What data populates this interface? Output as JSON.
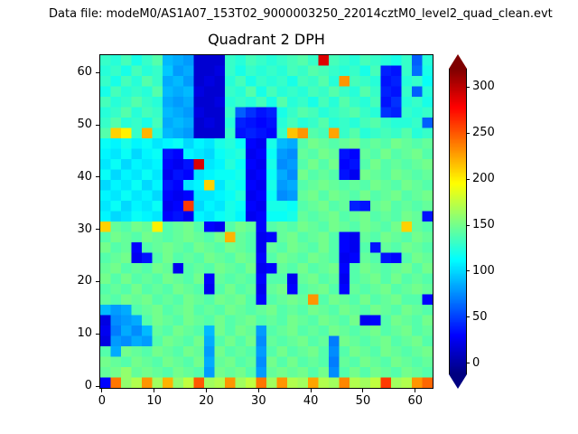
{
  "figure": {
    "data_file_label": "Data file: modeM0/AS1A07_153T02_9000003250_22014cztM0_level2_quad_clean.evt"
  },
  "chart_data": {
    "type": "heatmap",
    "title": "Quadrant 2 DPH",
    "colormap": "jet",
    "x_range": [
      -0.5,
      63.5
    ],
    "y_range": [
      -0.5,
      63.5
    ],
    "x_ticks": [
      0,
      10,
      20,
      30,
      40,
      50,
      60
    ],
    "y_ticks": [
      0,
      10,
      20,
      30,
      40,
      50,
      60
    ],
    "colorbar": {
      "ticks": [
        0,
        50,
        100,
        150,
        200,
        250,
        300
      ],
      "vmin": -12,
      "vmax": 320,
      "extend": "both"
    },
    "note": "32x32 downsampled estimate of the 64x64 detector plane histogram; values in counts",
    "values_rows_top_to_bottom": [
      "130 125 135 120 130 140 90 85 80 15 15 15 130 125 135 130 125 130 135 140 130 290 135 130 125 135 130 125 120 130 60 125",
      "125 130 120 135 125 130 95 80 85 15 15 20 130 120 130 125 130 125 135 130 140 135 130 125 130 120 135 40 35 130 65 120",
      "130 120 135 125 140 130 85 90 80 15 20 15 125 135 120 130 125 130 120 135 130 140 125 230 135 130 125 35 40 125 130 115",
      "120 135 125 130 125 140 90 85 90 20 15 15 130 125 140 120 135 125 130 125 135 130 140 130 125 140 130 40 35 130 60 125",
      "135 125 130 140 130 125 85 80 85 15 15 20 125 130 125 135 120 140 125 130 120 135 125 140 130 125 135 35 45 125 130 120",
      "125 130 140 125 135 130 90 85 80 20 15 15 130 60 45 35 40 120 130 140 135 125 130 135 140 130 125 45 40 130 125 130",
      "130 140 125 130 120 135 85 90 85 15 20 15 125 40 35 30 35 125 135 125 130 140 125 130 125 135 140 130 125 125 130 60",
      "140 210 200 130 220 125 90 85 80 15 15 15 130 35 40 35 30 130 215 230 140 135 225 130 140 125 130 135 130 140 125 130",
      "115 110 120 110 115 105 110 115 100 110 105 120 125 115 30 25 120 90 85 140 150 145 140 145 150 140 145 140 150 145 140 145",
      "110 105 115 100 110 115 35 30 110 105 100 115 120 125 25 30 115 80 75 145 140 150 145 35 30 145 140 150 140 145 150 140",
      "105 115 100 110 105 110 30 25 35 290 105 110 125 115 30 25 120 75 80 140 150 140 150 30 35 140 150 140 145 140 145 150",
      "115 100 110 105 115 105 25 35 30 105 110 115 115 120 25 30 115 85 75 150 140 145 140 35 25 150 145 140 150 145 140 145",
      "100 110 105 115 100 110 35 30 105 110 210 105 120 115 30 25 120 80 85 140 145 150 145 140 145 140 150 145 140 150 145 140",
      "110 105 115 105 110 100 30 25 30 105 105 110 115 125 25 30 115 75 80 145 150 140 150 145 140 150 140 145 150 140 145 150",
      "105 115 100 110 105 115 25 30 260 100 110 105 120 115 30 25 120 120 115 140 145 150 140 145 40 35 145 150 140 145 140 145",
      "110 100 105 115 110 105 30 35 25 110 105 115 120 110 25 30 115 115 120 145 140 145 150 140 145 150 140 145 140 150 145 35",
      "210 145 140 150 145 200 140 145 150 140 30 25 140 150 145 30 140 145 140 150 145 140 150 145 140 150 145 140 150 210 145 140",
      "140 150 145 140 150 145 140 145 150 145 140 150 220 145 140 25 30 145 150 140 145 150 140 30 25 145 140 150 145 140 150 145",
      "150 140 145 30 140 145 150 145 140 150 145 140 150 145 140 25 145 140 150 145 140 150 140 30 25 140 35 145 140 150 145 140",
      "140 145 150 25 35 140 150 140 145 140 150 145 140 150 145 30 140 150 145 140 150 145 140 25 30 145 140 35 30 140 150 145",
      "145 150 140 145 140 150 145 25 140 145 140 150 145 140 150 25 30 145 140 150 140 145 150 30 140 150 145 140 145 150 140 150",
      "150 140 150 140 145 140 150 145 140 150 30 145 140 145 140 30 140 140 25 145 150 140 145 25 140 145 150 140 150 140 145 140",
      "140 145 140 150 140 145 140 150 145 140 25 140 150 140 145 25 145 150 30 140 145 150 140 30 145 140 145 150 140 145 150 145",
      "145 140 150 145 150 140 145 140 150 145 140 150 145 150 140 30 140 145 150 145 230 140 150 145 140 150 140 145 150 140 140 30",
      "90 80 85 140 145 150 140 145 150 140 145 140 150 145 140 145 150 140 145 140 150 145 140 150 145 140 150 145 140 150 145 140",
      "20 75 80 85 140 150 145 140 150 145 140 150 140 145 150 140 145 140 150 145 140 150 145 140 150 25 30 140 150 145 140 150",
      "25 70 85 75 90 145 140 150 145 140 90 150 140 150 145 80 140 145 150 140 145 140 150 145 140 145 150 140 145 150 140 145",
      "20 80 75 85 80 140 150 145 140 150 85 140 150 140 150 75 145 140 145 150 140 145 70 150 145 140 145 150 140 145 150 140",
      "140 85 150 145 140 150 145 140 150 145 80 150 140 145 140 80 140 150 140 145 150 140 75 140 150 145 140 150 145 140 145 150",
      "150 145 140 150 145 140 150 145 140 150 85 145 150 140 145 75 150 140 150 140 145 140 70 145 140 150 145 140 150 145 140 145",
      "145 150 160 145 150 145 140 150 145 140 80 150 145 150 140 80 145 150 145 150 140 150 75 140 150 140 150 145 140 150 145 140",
      "30 240 160 170 230 165 220 160 175 250 165 170 230 165 175 240 165 230 170 165 225 170 165 235 170 165 175 260 165 170 230 245"
    ]
  }
}
